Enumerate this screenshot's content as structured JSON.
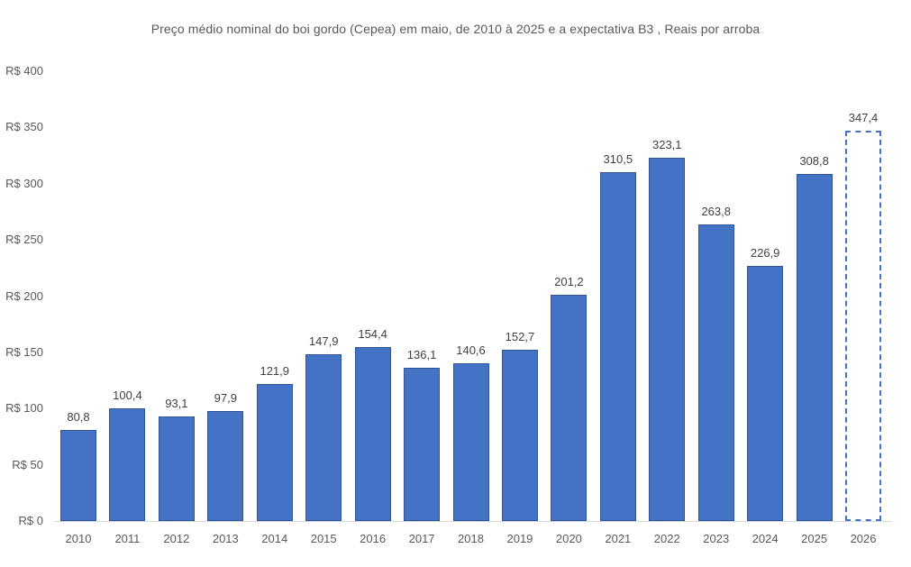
{
  "chart_data": {
    "type": "bar",
    "title": "Preço médio nominal do boi gordo (Cepea) em maio, de 2010 à 2025 e a expectativa B3 , Reais por arroba",
    "categories": [
      "2010",
      "2011",
      "2012",
      "2013",
      "2014",
      "2015",
      "2016",
      "2017",
      "2018",
      "2019",
      "2020",
      "2021",
      "2022",
      "2023",
      "2024",
      "2025",
      "2026"
    ],
    "values": [
      80.8,
      100.4,
      93.1,
      97.9,
      121.9,
      147.9,
      154.4,
      136.1,
      140.6,
      152.7,
      201.2,
      310.5,
      323.1,
      263.8,
      226.9,
      308.8,
      347.4
    ],
    "value_labels": [
      "80,8",
      "100,4",
      "93,1",
      "97,9",
      "121,9",
      "147,9",
      "154,4",
      "136,1",
      "140,6",
      "152,7",
      "201,2",
      "310,5",
      "323,1",
      "263,8",
      "226,9",
      "308,8",
      "347,4"
    ],
    "forecast_index": 16,
    "forecast_category": "2026",
    "xlabel": "",
    "ylabel": "",
    "ylim": [
      0,
      400
    ],
    "y_tick_values": [
      0,
      50,
      100,
      150,
      200,
      250,
      300,
      350,
      400
    ],
    "y_tick_labels": [
      "R$ 0",
      "R$ 50",
      "R$ 100",
      "R$ 150",
      "R$ 200",
      "R$ 250",
      "R$ 300",
      "R$ 350",
      "R$ 400"
    ],
    "grid": false,
    "legend": "none"
  },
  "colors": {
    "bar_fill": "#4472c4",
    "bar_border": "#2e5697",
    "forecast_border": "#4472c4",
    "axis_line": "#d9d9d9",
    "value_label_text": "#404040",
    "tick_text": "#595959",
    "title_text": "#595959",
    "background": "#ffffff"
  }
}
